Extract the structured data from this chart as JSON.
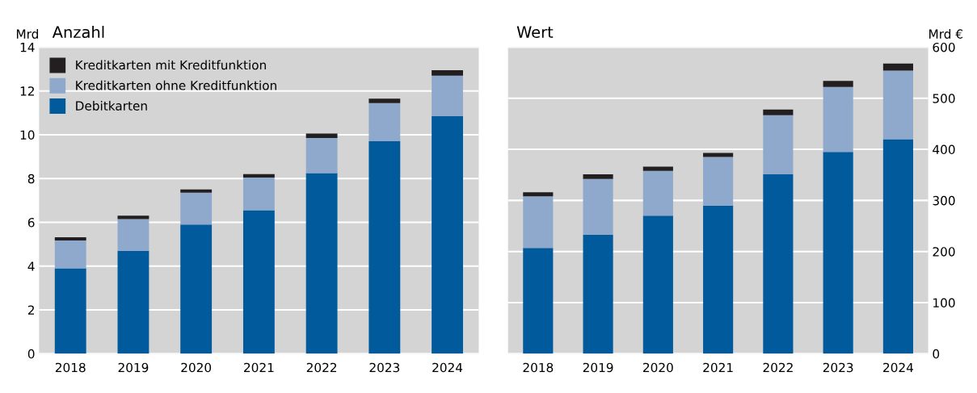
{
  "chart_data": [
    {
      "type": "bar",
      "stacked": true,
      "title": "Anzahl",
      "ylabel": "Mrd",
      "categories": [
        "2018",
        "2019",
        "2020",
        "2021",
        "2022",
        "2023",
        "2024"
      ],
      "ylim": [
        0,
        14
      ],
      "yticks": [
        0,
        2,
        4,
        6,
        8,
        10,
        12,
        14
      ],
      "grid": "y",
      "legend": "top left",
      "series": [
        {
          "name": "Debitkarten",
          "color": "#005a9c",
          "values": [
            3.9,
            4.7,
            5.9,
            6.55,
            8.25,
            9.7,
            10.85
          ]
        },
        {
          "name": "Kreditkarten ohne Kreditfunktion",
          "color": "#8ea9cc",
          "values": [
            1.27,
            1.45,
            1.45,
            1.5,
            1.6,
            1.75,
            1.85
          ]
        },
        {
          "name": "Kreditkarten mit Kreditfunktion",
          "color": "#231f20",
          "values": [
            0.15,
            0.15,
            0.15,
            0.15,
            0.2,
            0.2,
            0.25
          ]
        }
      ]
    },
    {
      "type": "bar",
      "stacked": true,
      "title": "Wert",
      "ylabel": "Mrd €",
      "categories": [
        "2018",
        "2019",
        "2020",
        "2021",
        "2022",
        "2023",
        "2024"
      ],
      "ylim": [
        0,
        600
      ],
      "yticks": [
        0,
        100,
        200,
        300,
        400,
        500,
        600
      ],
      "grid": "y",
      "series": [
        {
          "color": "#005a9c",
          "values": [
            207,
            233,
            270,
            290,
            351,
            395,
            420
          ]
        },
        {
          "color": "#8ea9cc",
          "values": [
            101,
            109,
            88,
            95,
            116,
            127,
            134
          ]
        },
        {
          "color": "#231f20",
          "values": [
            8,
            9,
            8,
            8,
            11,
            12,
            14
          ]
        }
      ]
    }
  ]
}
